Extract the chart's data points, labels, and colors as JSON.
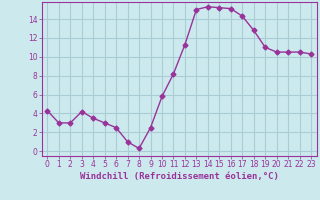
{
  "x": [
    0,
    1,
    2,
    3,
    4,
    5,
    6,
    7,
    8,
    9,
    10,
    11,
    12,
    13,
    14,
    15,
    16,
    17,
    18,
    19,
    20,
    21,
    22,
    23
  ],
  "y": [
    4.3,
    3.0,
    3.0,
    4.2,
    3.5,
    3.0,
    2.5,
    1.0,
    0.3,
    2.5,
    5.8,
    8.2,
    11.3,
    15.0,
    15.3,
    15.2,
    15.1,
    14.3,
    12.8,
    11.0,
    10.5,
    10.5,
    10.5,
    10.3
  ],
  "line_color": "#993399",
  "marker": "D",
  "marker_size": 2.5,
  "bg_color": "#cce9ee",
  "grid_color": "#aacdd5",
  "xlabel": "Windchill (Refroidissement éolien,°C)",
  "xlabel_color": "#993399",
  "tick_color": "#993399",
  "spine_color": "#993399",
  "ylim": [
    -0.5,
    15.8
  ],
  "xlim": [
    -0.5,
    23.5
  ],
  "yticks": [
    0,
    2,
    4,
    6,
    8,
    10,
    12,
    14
  ],
  "xticks": [
    0,
    1,
    2,
    3,
    4,
    5,
    6,
    7,
    8,
    9,
    10,
    11,
    12,
    13,
    14,
    15,
    16,
    17,
    18,
    19,
    20,
    21,
    22,
    23
  ],
  "tick_fontsize": 5.5,
  "xlabel_fontsize": 6.5,
  "linewidth": 1.0
}
